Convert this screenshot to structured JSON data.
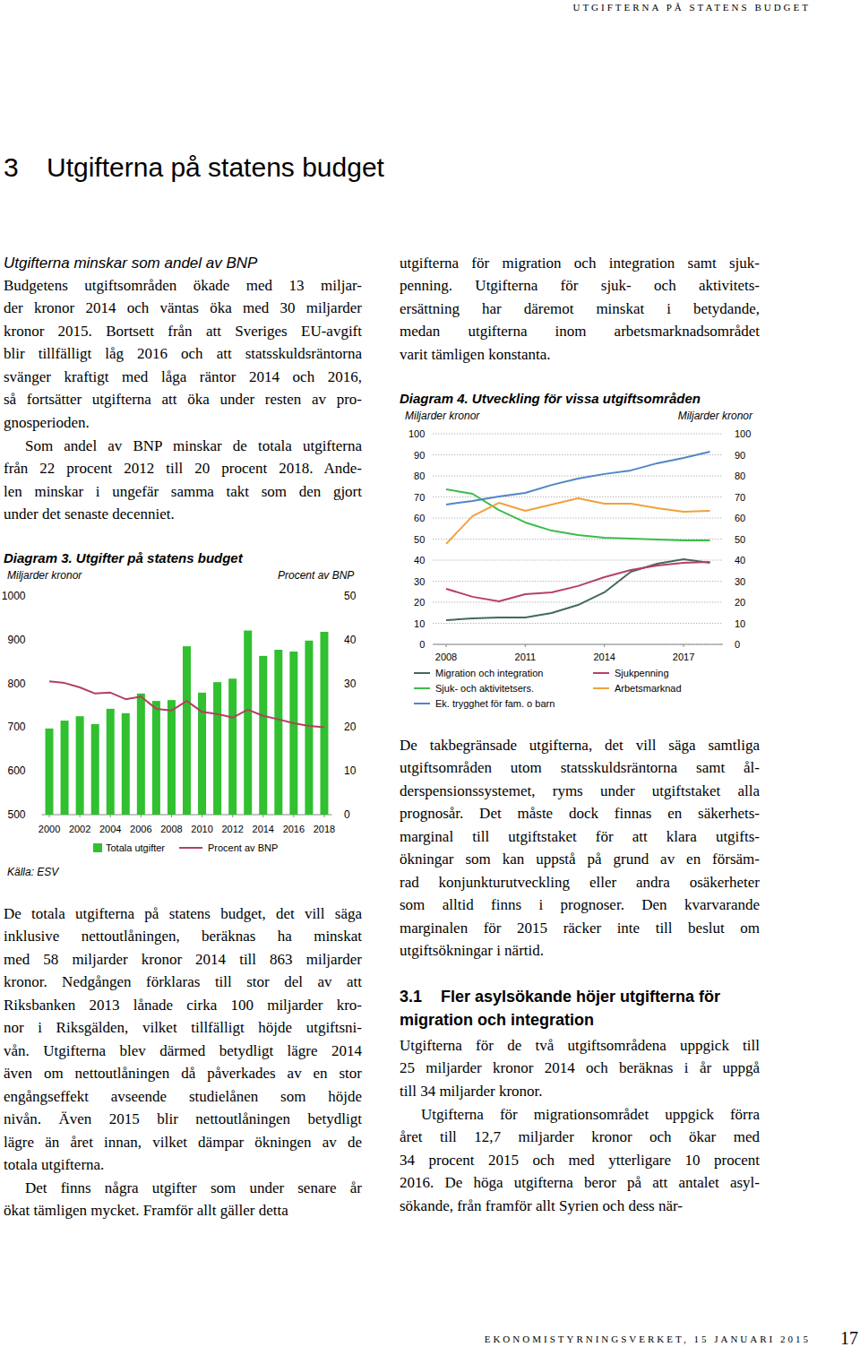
{
  "header": {
    "running_title": "UTGIFTERNA PÅ STATENS BUDGET"
  },
  "chapter": {
    "number": "3",
    "title": "Utgifterna på statens budget"
  },
  "subheading": "Utgifterna minskar som andel av BNP",
  "paragraphs": [
    [
      "Budgetens utgiftsområden ökade med 13 miljar-",
      "der kronor 2014 och väntas öka med 30 miljarder",
      "kronor 2015. Bortsett från att Sveriges EU-avgift",
      "blir tillfälligt låg 2016 och att statsskuldsräntorna",
      "svänger kraftigt med låga räntor 2014 och 2016,",
      "så fortsätter utgifterna att öka under resten av pro-",
      "gnosperioden."
    ],
    [
      "Som andel av BNP minskar de totala utgifterna",
      "från 22 procent 2012 till 20 procent 2018. Ande-",
      "len minskar i ungefär samma takt som den gjort",
      "under det senaste decenniet."
    ],
    [
      "De totala utgifterna på statens budget, det vill säga",
      "inklusive nettoutlåningen, beräknas ha minskat",
      "med 58 miljarder kronor 2014 till 863 miljarder",
      "kronor. Nedgången förklaras till stor del av att",
      "Riksbanken 2013 lånade cirka 100 miljarder kro-",
      "nor i Riksgälden, vilket tillfälligt höjde utgiftsni-",
      "vån. Utgifterna blev därmed betydligt lägre 2014",
      "även om nettoutlåningen då påverkades av en stor",
      "engångseffekt avseende studielånen som höjde",
      "nivån. Även 2015 blir nettoutlåningen betydligt",
      "lägre än året innan, vilket dämpar ökningen av de",
      "totala utgifterna."
    ],
    [
      "Det finns några utgifter som under senare år",
      "ökat tämligen mycket. Framför allt gäller detta"
    ],
    [
      "utgifterna för migration och integration samt sjuk-",
      "penning. Utgifterna för sjuk- och aktivitets-",
      "ersättning har däremot minskat i betydande,",
      "medan utgifterna inom arbetsmarknadsområdet",
      "varit tämligen konstanta."
    ],
    [
      "De takbegränsade utgifterna, det vill säga samtliga",
      "utgiftsområden utom statsskuldsräntorna samt ål-",
      "derspensionssystemet, ryms under utgiftstaket alla",
      "prognosår. Det måste dock finnas en säkerhets-",
      "marginal till utgiftstaket för att klara utgifts-",
      "ökningar som kan uppstå på grund av en försäm-",
      "rad konjunkturutveckling eller andra osäkerheter",
      "som alltid finns i prognoser. Den kvarvarande",
      "marginalen för 2015 räcker inte till beslut om",
      "utgiftsökningar i närtid."
    ],
    [
      "Utgifterna för de två utgiftsområdena uppgick till",
      "25 miljarder kronor 2014 och beräknas i år uppgå",
      "till 34 miljarder kronor."
    ],
    [
      "Utgifterna för migrationsområdet uppgick förra",
      "året till 12,7 miljarder kronor och ökar med",
      "34 procent 2015 och med ytterligare 10 procent",
      "2016. De höga utgifterna beror på att antalet asyl-",
      "sökande, från framför allt Syrien och dess när-"
    ]
  ],
  "section": {
    "number": "3.1",
    "title_lines": [
      "Fler asylsökande höjer utgifterna för",
      "migration och integration"
    ]
  },
  "chart_data": [
    {
      "type": "bar",
      "title": "Diagram 3. Utgifter på statens budget",
      "ylabel": "Miljarder kronor",
      "y2label": "Procent av BNP",
      "source": "Källa: ESV",
      "x": [
        2000,
        2001,
        2002,
        2003,
        2004,
        2005,
        2006,
        2007,
        2008,
        2009,
        2010,
        2011,
        2012,
        2013,
        2014,
        2015,
        2016,
        2017,
        2018
      ],
      "series": [
        {
          "name": "Totala utgifter",
          "type": "bar",
          "color": "#30c030",
          "values": [
            697,
            715,
            725,
            707,
            742,
            732,
            777,
            760,
            762,
            885,
            779,
            803,
            811,
            921,
            863,
            877,
            873,
            898,
            918
          ]
        },
        {
          "name": "Procent av BNP",
          "type": "line",
          "color": "#b5405f",
          "axis": "y2",
          "values": [
            30.5,
            30.1,
            29.1,
            27.7,
            27.9,
            26.4,
            27.0,
            24.2,
            23.8,
            26.0,
            23.5,
            23.0,
            22.2,
            24.0,
            22.6,
            21.8,
            20.9,
            20.3,
            20.0
          ]
        }
      ],
      "xlim": [
        1999.5,
        2018.5
      ],
      "xticks": [
        2000,
        2002,
        2004,
        2006,
        2008,
        2010,
        2012,
        2014,
        2016,
        2018
      ],
      "ylim": [
        500,
        1000
      ],
      "yticks": [
        500,
        600,
        700,
        800,
        900,
        1000
      ],
      "y2lim": [
        0,
        50
      ],
      "y2ticks": [
        0,
        10,
        20,
        30,
        40,
        50
      ],
      "grid": false,
      "legend": "bottom"
    },
    {
      "type": "line",
      "title": "Diagram 4. Utveckling för vissa utgiftsområden",
      "ylabel": "Miljarder kronor",
      "y2label": "Miljarder kronor",
      "x": [
        2008,
        2009,
        2010,
        2011,
        2012,
        2013,
        2014,
        2015,
        2016,
        2017,
        2018
      ],
      "series": [
        {
          "name": "Migration och integration",
          "color": "#44695a",
          "values": [
            11.5,
            12.3,
            12.8,
            12.8,
            14.9,
            18.7,
            24.7,
            34.5,
            38.3,
            40.4,
            38.7
          ]
        },
        {
          "name": "Sjukpenning",
          "color": "#b5406a",
          "values": [
            26.4,
            22.6,
            20.4,
            23.8,
            24.7,
            27.7,
            31.9,
            35.3,
            37.4,
            38.7,
            39.1
          ]
        },
        {
          "name": "Sjuk- och aktivitetsers.",
          "color": "#3cbc4a",
          "values": [
            73.6,
            71.5,
            63.8,
            57.9,
            54.0,
            51.9,
            50.6,
            50.2,
            49.8,
            49.4,
            49.4
          ]
        },
        {
          "name": "Arbetsmarknad",
          "color": "#f0a23a",
          "values": [
            47.7,
            60.9,
            67.2,
            63.4,
            66.4,
            69.4,
            66.8,
            66.8,
            64.7,
            63.0,
            63.4
          ]
        },
        {
          "name": "Ek. trygghet för fam. o barn",
          "color": "#4f86c6",
          "values": [
            66.4,
            68.1,
            70.2,
            71.9,
            75.7,
            78.7,
            80.9,
            82.6,
            86.0,
            88.5,
            91.5
          ]
        }
      ],
      "xlim": [
        2007.5,
        2018.5
      ],
      "xticks": [
        2008,
        2011,
        2014,
        2017
      ],
      "ylim": [
        0,
        100
      ],
      "yticks": [
        0,
        10,
        20,
        30,
        40,
        50,
        60,
        70,
        80,
        90,
        100
      ],
      "y2lim": [
        0,
        100
      ],
      "y2ticks": [
        0,
        10,
        20,
        30,
        40,
        50,
        60,
        70,
        80,
        90,
        100
      ],
      "grid": true,
      "legend": "bottom"
    }
  ],
  "footer": {
    "publisher": "EKONOMISTYRNINGSVERKET, 15 JANUARI 2015",
    "page": "17"
  }
}
